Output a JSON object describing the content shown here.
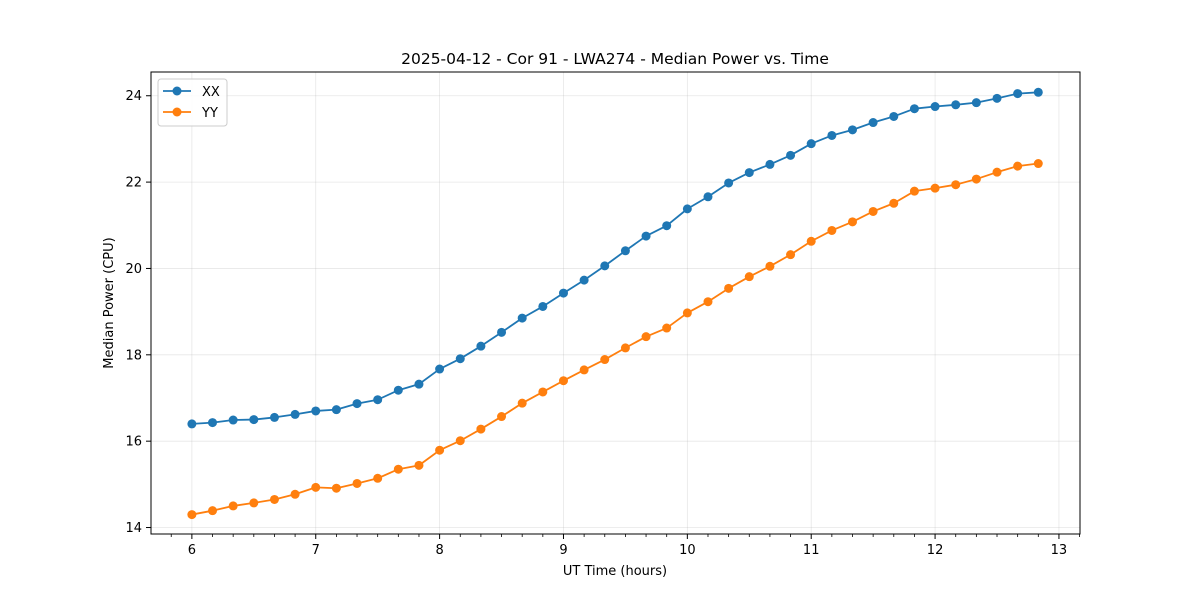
{
  "chart_data": {
    "type": "line",
    "title": "2025-04-12 - Cor 91 - LWA274 - Median Power vs. Time",
    "xlabel": "UT Time (hours)",
    "ylabel": "Median Power (CPU)",
    "xlim": [
      5.67,
      13.17
    ],
    "ylim": [
      13.85,
      24.55
    ],
    "xticks": [
      6,
      7,
      8,
      9,
      10,
      11,
      12,
      13
    ],
    "yticks": [
      14,
      16,
      18,
      20,
      22,
      24
    ],
    "grid": true,
    "legend_position": "top-left",
    "x": [
      6.0,
      6.1667,
      6.3333,
      6.5,
      6.6667,
      6.8333,
      7.0,
      7.1667,
      7.3333,
      7.5,
      7.6667,
      7.8333,
      8.0,
      8.1667,
      8.3333,
      8.5,
      8.6667,
      8.8333,
      9.0,
      9.1667,
      9.3333,
      9.5,
      9.6667,
      9.8333,
      10.0,
      10.1667,
      10.3333,
      10.5,
      10.6667,
      10.8333,
      11.0,
      11.1667,
      11.3333,
      11.5,
      11.6667,
      11.8333,
      12.0,
      12.1667,
      12.3333,
      12.5,
      12.6667,
      12.8333
    ],
    "series": [
      {
        "name": "XX",
        "color": "#1f77b4",
        "values": [
          16.4,
          16.43,
          16.49,
          16.5,
          16.55,
          16.62,
          16.7,
          16.73,
          16.87,
          16.96,
          17.18,
          17.32,
          17.67,
          17.91,
          18.2,
          18.52,
          18.85,
          19.12,
          19.43,
          19.73,
          20.06,
          20.41,
          20.75,
          20.99,
          21.38,
          21.66,
          21.98,
          22.22,
          22.41,
          22.62,
          22.89,
          23.08,
          23.21,
          23.38,
          23.52,
          23.7,
          23.75,
          23.79,
          23.84,
          23.94,
          24.05,
          24.08
        ]
      },
      {
        "name": "YY",
        "color": "#ff7f0e",
        "values": [
          14.3,
          14.39,
          14.5,
          14.57,
          14.65,
          14.77,
          14.93,
          14.91,
          15.02,
          15.14,
          15.35,
          15.44,
          15.79,
          16.01,
          16.28,
          16.57,
          16.88,
          17.14,
          17.4,
          17.65,
          17.89,
          18.16,
          18.42,
          18.62,
          18.97,
          19.23,
          19.54,
          19.81,
          20.05,
          20.32,
          20.63,
          20.88,
          21.08,
          21.32,
          21.51,
          21.79,
          21.86,
          21.94,
          22.07,
          22.23,
          22.37,
          22.43
        ]
      }
    ]
  }
}
